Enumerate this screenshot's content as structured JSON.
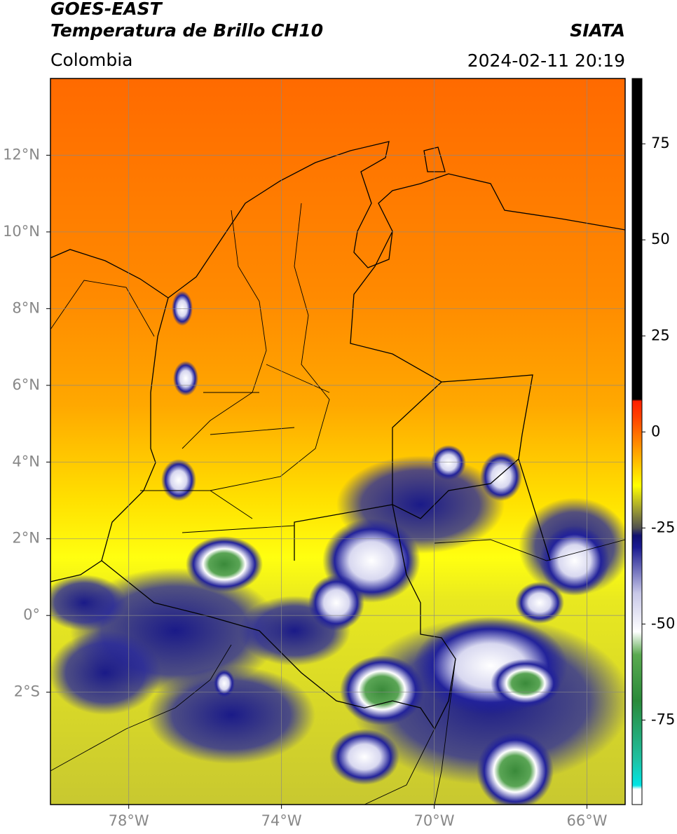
{
  "map": {
    "title": "GOES-EAST",
    "subtitle": "Temperatura de Brillo CH10",
    "source": "SIATA",
    "region": "Colombia",
    "datetime": "2024-02-11 20:19",
    "lonlim": [
      -80.05,
      -65.0
    ],
    "latlim": [
      -4.93,
      14.0
    ],
    "lonticks": [
      {
        "value": -78,
        "label": "78°W"
      },
      {
        "value": -74,
        "label": "74°W"
      },
      {
        "value": -70,
        "label": "70°W"
      },
      {
        "value": -66,
        "label": "66°W"
      }
    ],
    "latticks": [
      {
        "value": 12,
        "label": "12°N"
      },
      {
        "value": 10,
        "label": "10°N"
      },
      {
        "value": 8,
        "label": "8°N"
      },
      {
        "value": 6,
        "label": "6°N"
      },
      {
        "value": 4,
        "label": "4°N"
      },
      {
        "value": 2,
        "label": "2°N"
      },
      {
        "value": 0,
        "label": "0°"
      },
      {
        "value": -2,
        "label": "2°S"
      }
    ],
    "grid": true,
    "colorbar": {
      "clim": [
        -97,
        92
      ],
      "ticks": [
        75,
        50,
        25,
        0,
        -25,
        -50,
        -75
      ],
      "colormap": [
        {
          "value": -97,
          "color": "#ffffff"
        },
        {
          "value": -93,
          "color": "#ffffff"
        },
        {
          "value": -92,
          "color": "#00e5e5"
        },
        {
          "value": -85,
          "color": "#20c0a0"
        },
        {
          "value": -70,
          "color": "#2a8a3a"
        },
        {
          "value": -58,
          "color": "#5aaa50"
        },
        {
          "value": -52,
          "color": "#ffffff"
        },
        {
          "value": -42,
          "color": "#c8c8e8"
        },
        {
          "value": -30,
          "color": "#1a1a90"
        },
        {
          "value": -27,
          "color": "#101070"
        },
        {
          "value": -25,
          "color": "#505050"
        },
        {
          "value": -20,
          "color": "#a0a030"
        },
        {
          "value": -14,
          "color": "#ffff00"
        },
        {
          "value": -5,
          "color": "#ffa000"
        },
        {
          "value": 4,
          "color": "#ff4000"
        },
        {
          "value": 8,
          "color": "#ff2000"
        },
        {
          "value": 8.5,
          "color": "#000000"
        },
        {
          "value": 92,
          "color": "#000000"
        }
      ]
    }
  }
}
